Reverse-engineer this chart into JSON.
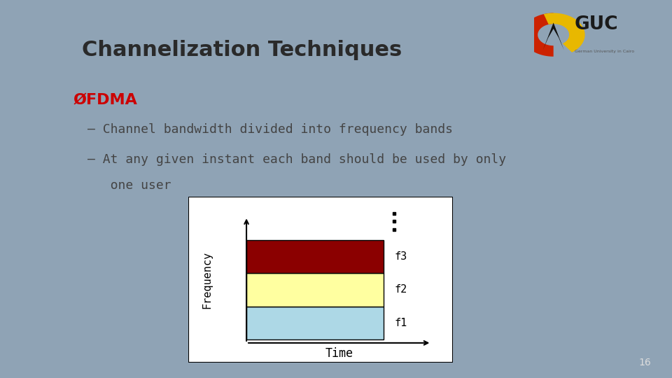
{
  "title": "Channelization Techniques",
  "title_color": "#2a2a2a",
  "title_fontsize": 22,
  "bullet_header": "ØFDMA",
  "bullet_header_color": "#cc0000",
  "bullet_header_fontsize": 16,
  "bullet1": "– Channel bandwidth divided into frequency bands",
  "bullet2_line1": "– At any given instant each band should be used by only",
  "bullet2_line2": "   one user",
  "bullet_fontsize": 13,
  "bullet_color": "#444444",
  "outer_bg": "#8fa3b5",
  "slide_bg": "#f5f5f5",
  "diagram_bg": "#ffffff",
  "bar_f1_color": "#add8e6",
  "bar_f2_color": "#ffffa0",
  "bar_f3_color": "#8b0000",
  "axis_label_fontsize": 11,
  "bar_label_fontsize": 11,
  "page_number": "16"
}
